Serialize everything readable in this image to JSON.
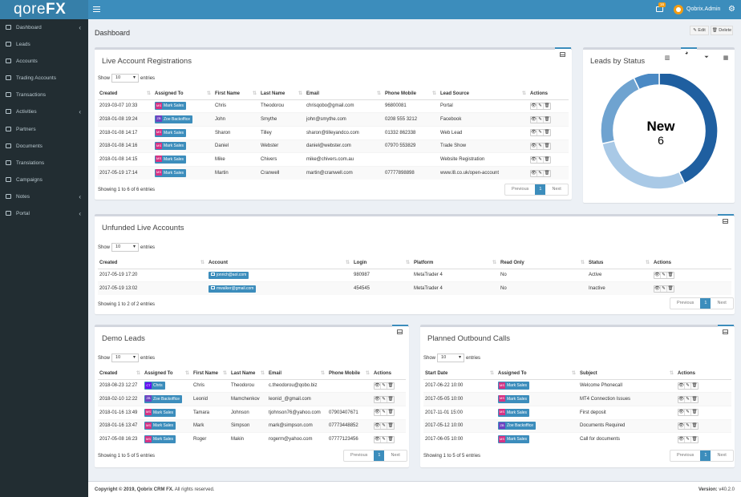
{
  "app": {
    "logo_light": "qore",
    "logo_bold": "FX"
  },
  "header": {
    "mail_badge": "16",
    "user_name": "Qobrix.Admin"
  },
  "sidebar": {
    "items": [
      {
        "label": "Dashboard",
        "icon": "dashboard-icon",
        "has_children": true
      },
      {
        "label": "Leads",
        "icon": "leads-icon",
        "has_children": false
      },
      {
        "label": "Accounts",
        "icon": "accounts-icon",
        "has_children": false
      },
      {
        "label": "Trading Accounts",
        "icon": "chart-icon",
        "has_children": false
      },
      {
        "label": "Transactions",
        "icon": "transactions-icon",
        "has_children": false
      },
      {
        "label": "Activities",
        "icon": "calendar-icon",
        "has_children": true
      },
      {
        "label": "Partners",
        "icon": "handshake-icon",
        "has_children": false
      },
      {
        "label": "Documents",
        "icon": "file-icon",
        "has_children": false
      },
      {
        "label": "Translations",
        "icon": "translate-icon",
        "has_children": false
      },
      {
        "label": "Campaigns",
        "icon": "megaphone-icon",
        "has_children": false
      },
      {
        "label": "Notes",
        "icon": "notes-icon",
        "has_children": true
      },
      {
        "label": "Portal",
        "icon": "portal-icon",
        "has_children": true
      }
    ]
  },
  "page": {
    "title": "Dashboard",
    "edit_label": "Edit",
    "delete_label": "Delete"
  },
  "live_accounts": {
    "title": "Live Account Registrations",
    "show_label": "Show",
    "entries_value": "10",
    "entries_label": "entries",
    "columns": [
      "Created",
      "Assigned To",
      "First Name",
      "Last Name",
      "Email",
      "Phone Mobile",
      "Lead Source",
      "Actions"
    ],
    "rows": [
      {
        "created": "2019-03-07 10:33",
        "agent": "Mark Sales",
        "initials": "MS",
        "first": "Chris",
        "last": "Theodorou",
        "email": "chrisqobo@gmail.com",
        "phone": "96800081",
        "source": "Portal"
      },
      {
        "created": "2018-01-08 19:24",
        "agent": "Zoe Backoffice",
        "initials": "ZB",
        "first": "John",
        "last": "Smythe",
        "email": "john@smythe.com",
        "phone": "0208 555 3212",
        "source": "Facebook"
      },
      {
        "created": "2018-01-08 14:17",
        "agent": "Mark Sales",
        "initials": "MS",
        "first": "Sharon",
        "last": "Tilley",
        "email": "sharon@tilleyandco.com",
        "phone": "01332 862338",
        "source": "Web Lead"
      },
      {
        "created": "2018-01-08 14:16",
        "agent": "Mark Sales",
        "initials": "MS",
        "first": "Daniel",
        "last": "Webster",
        "email": "daniel@webster.com",
        "phone": "07970 553829",
        "source": "Trade Show"
      },
      {
        "created": "2018-01-08 14:15",
        "agent": "Mark Sales",
        "initials": "MS",
        "first": "Mike",
        "last": "Chivers",
        "email": "mike@chivers.com.au",
        "phone": "",
        "source": "Website Registration"
      },
      {
        "created": "2017-05-19 17:14",
        "agent": "Mark Sales",
        "initials": "MS",
        "first": "Martin",
        "last": "Cranwell",
        "email": "martin@cranwell.com",
        "phone": "07777898898",
        "source": "www.l8.co.uk/open-account"
      }
    ],
    "info": "Showing 1 to 6 of 6 entries"
  },
  "pager": {
    "previous": "Previous",
    "page": "1",
    "next": "Next"
  },
  "donut": {
    "title": "Leads by Status",
    "center_label": "New",
    "center_value": "6",
    "segments": [
      {
        "value": 6,
        "color": "#1f5fa0"
      },
      {
        "value": 4,
        "color": "#a9c9e6"
      },
      {
        "value": 3,
        "color": "#6fa3d0"
      },
      {
        "value": 1,
        "color": "#4a89c4"
      }
    ]
  },
  "unfunded": {
    "title": "Unfunded Live Accounts",
    "columns": [
      "Created",
      "Account",
      "Login",
      "Platform",
      "Read Only",
      "Status",
      "Actions"
    ],
    "rows": [
      {
        "created": "2017-05-19 17:20",
        "account": "jonrich@aol.com",
        "login": "980987",
        "platform": "MetaTrader 4",
        "readonly": "No",
        "status": "Active"
      },
      {
        "created": "2017-05-19 13:02",
        "account": "mwalker@gmail.com",
        "login": "454545",
        "platform": "MetaTrader 4",
        "readonly": "No",
        "status": "Inactive"
      }
    ],
    "info": "Showing 1 to 2 of 2 entries"
  },
  "demo": {
    "title": "Demo Leads",
    "columns": [
      "Created",
      "Assigned To",
      "First Name",
      "Last Name",
      "Email",
      "Phone Mobile",
      "Actions"
    ],
    "rows": [
      {
        "created": "2018-08-23 12:27",
        "agent": "Chris",
        "initials": "CT",
        "first": "Chris",
        "last": "Theodorou",
        "email": "c.theodorou@qobo.biz",
        "phone": ""
      },
      {
        "created": "2018-02-10 12:22",
        "agent": "Zoe Backoffice",
        "initials": "ZB",
        "first": "Leonid",
        "last": "Mamchenkov",
        "email": "leonid_@gmail.com",
        "phone": ""
      },
      {
        "created": "2018-01-16 13:49",
        "agent": "Mark Sales",
        "initials": "MS",
        "first": "Tamara",
        "last": "Johnson",
        "email": "tjohnson76@yahoo.com",
        "phone": "07903407671"
      },
      {
        "created": "2018-01-16 13:47",
        "agent": "Mark Sales",
        "initials": "MS",
        "first": "Mark",
        "last": "Simpson",
        "email": "mark@simpson.com",
        "phone": "07773448852"
      },
      {
        "created": "2017-05-08 16:23",
        "agent": "Mark Sales",
        "initials": "MS",
        "first": "Roger",
        "last": "Makin",
        "email": "rogerm@yahoo.com",
        "phone": "07777123456"
      }
    ],
    "info": "Showing 1 to 5 of 5 entries"
  },
  "calls": {
    "title": "Planned Outbound Calls",
    "columns": [
      "Start Date",
      "Assigned To",
      "Subject",
      "Actions"
    ],
    "rows": [
      {
        "start": "2017-06-22 10:00",
        "agent": "Mark Sales",
        "initials": "MS",
        "subject": "Welcome Phonecall"
      },
      {
        "start": "2017-05-05 10:00",
        "agent": "Mark Sales",
        "initials": "MS",
        "subject": "MT4 Connection Issues"
      },
      {
        "start": "2017-11-01 15:00",
        "agent": "Mark Sales",
        "initials": "MS",
        "subject": "First deposit"
      },
      {
        "start": "2017-05-12 10:00",
        "agent": "Zoe Backoffice",
        "initials": "ZB",
        "subject": "Documents Required"
      },
      {
        "start": "2017-06-05 10:00",
        "agent": "Mark Sales",
        "initials": "MS",
        "subject": "Call for documents"
      }
    ],
    "info": "Showing 1 to 5 of 5 entries"
  },
  "footer": {
    "copyright_prefix": "Copyright © 2019,",
    "copyright_brand": "Qobrix CRM FX.",
    "copyright_suffix": "All rights reserved.",
    "version_label": "Version:",
    "version_value": "v40.2.0"
  }
}
